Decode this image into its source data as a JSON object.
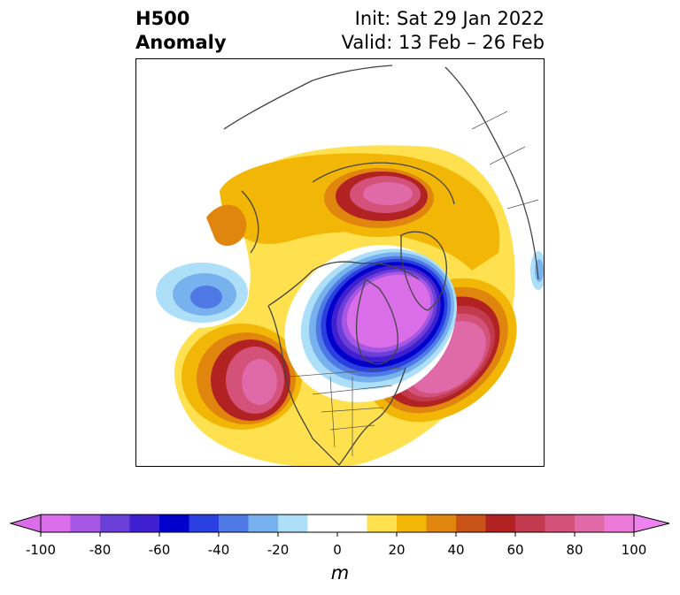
{
  "title": {
    "left_line1": "H500",
    "left_line2": "Anomaly",
    "right_line1": "Init: Sat 29 Jan 2022",
    "right_line2": "Valid: 13 Feb – 26 Feb"
  },
  "colorbar": {
    "unit": "m",
    "range": [
      -100,
      100
    ],
    "step": 10,
    "extend": "both",
    "tick_labels": [
      "-100",
      "-80",
      "-60",
      "-40",
      "-20",
      "0",
      "20",
      "40",
      "60",
      "80",
      "100"
    ],
    "colors": [
      "#d96ee8",
      "#a656e4",
      "#6a3fd8",
      "#3f1fd0",
      "#0000cc",
      "#2a3fe0",
      "#4f7ae6",
      "#78b2ee",
      "#ade0f8",
      "#ffffff",
      "#ffffff",
      "#ffe14f",
      "#f2b606",
      "#e0860e",
      "#c95316",
      "#b22222",
      "#c23a4e",
      "#d4527a",
      "#e06aa8",
      "#ec7ad8"
    ],
    "over_color": "#ee82ee",
    "under_color": "#d96ee8"
  },
  "map": {
    "projection": "north-polar-stereographic",
    "features": [
      "coastlines",
      "country-borders",
      "state-borders"
    ],
    "anomalies": [
      {
        "label": "ridge-west-coast",
        "sign": "positive",
        "peak_m": 90
      },
      {
        "label": "ridge-greenland-north-atlantic",
        "sign": "positive",
        "peak_m": 100
      },
      {
        "label": "ridge-siberia-arctic",
        "sign": "positive",
        "peak_m": 90
      },
      {
        "label": "trough-arctic-canada",
        "sign": "negative",
        "peak_m": -100
      },
      {
        "label": "trough-north-pacific",
        "sign": "negative",
        "peak_m": -40
      }
    ]
  }
}
